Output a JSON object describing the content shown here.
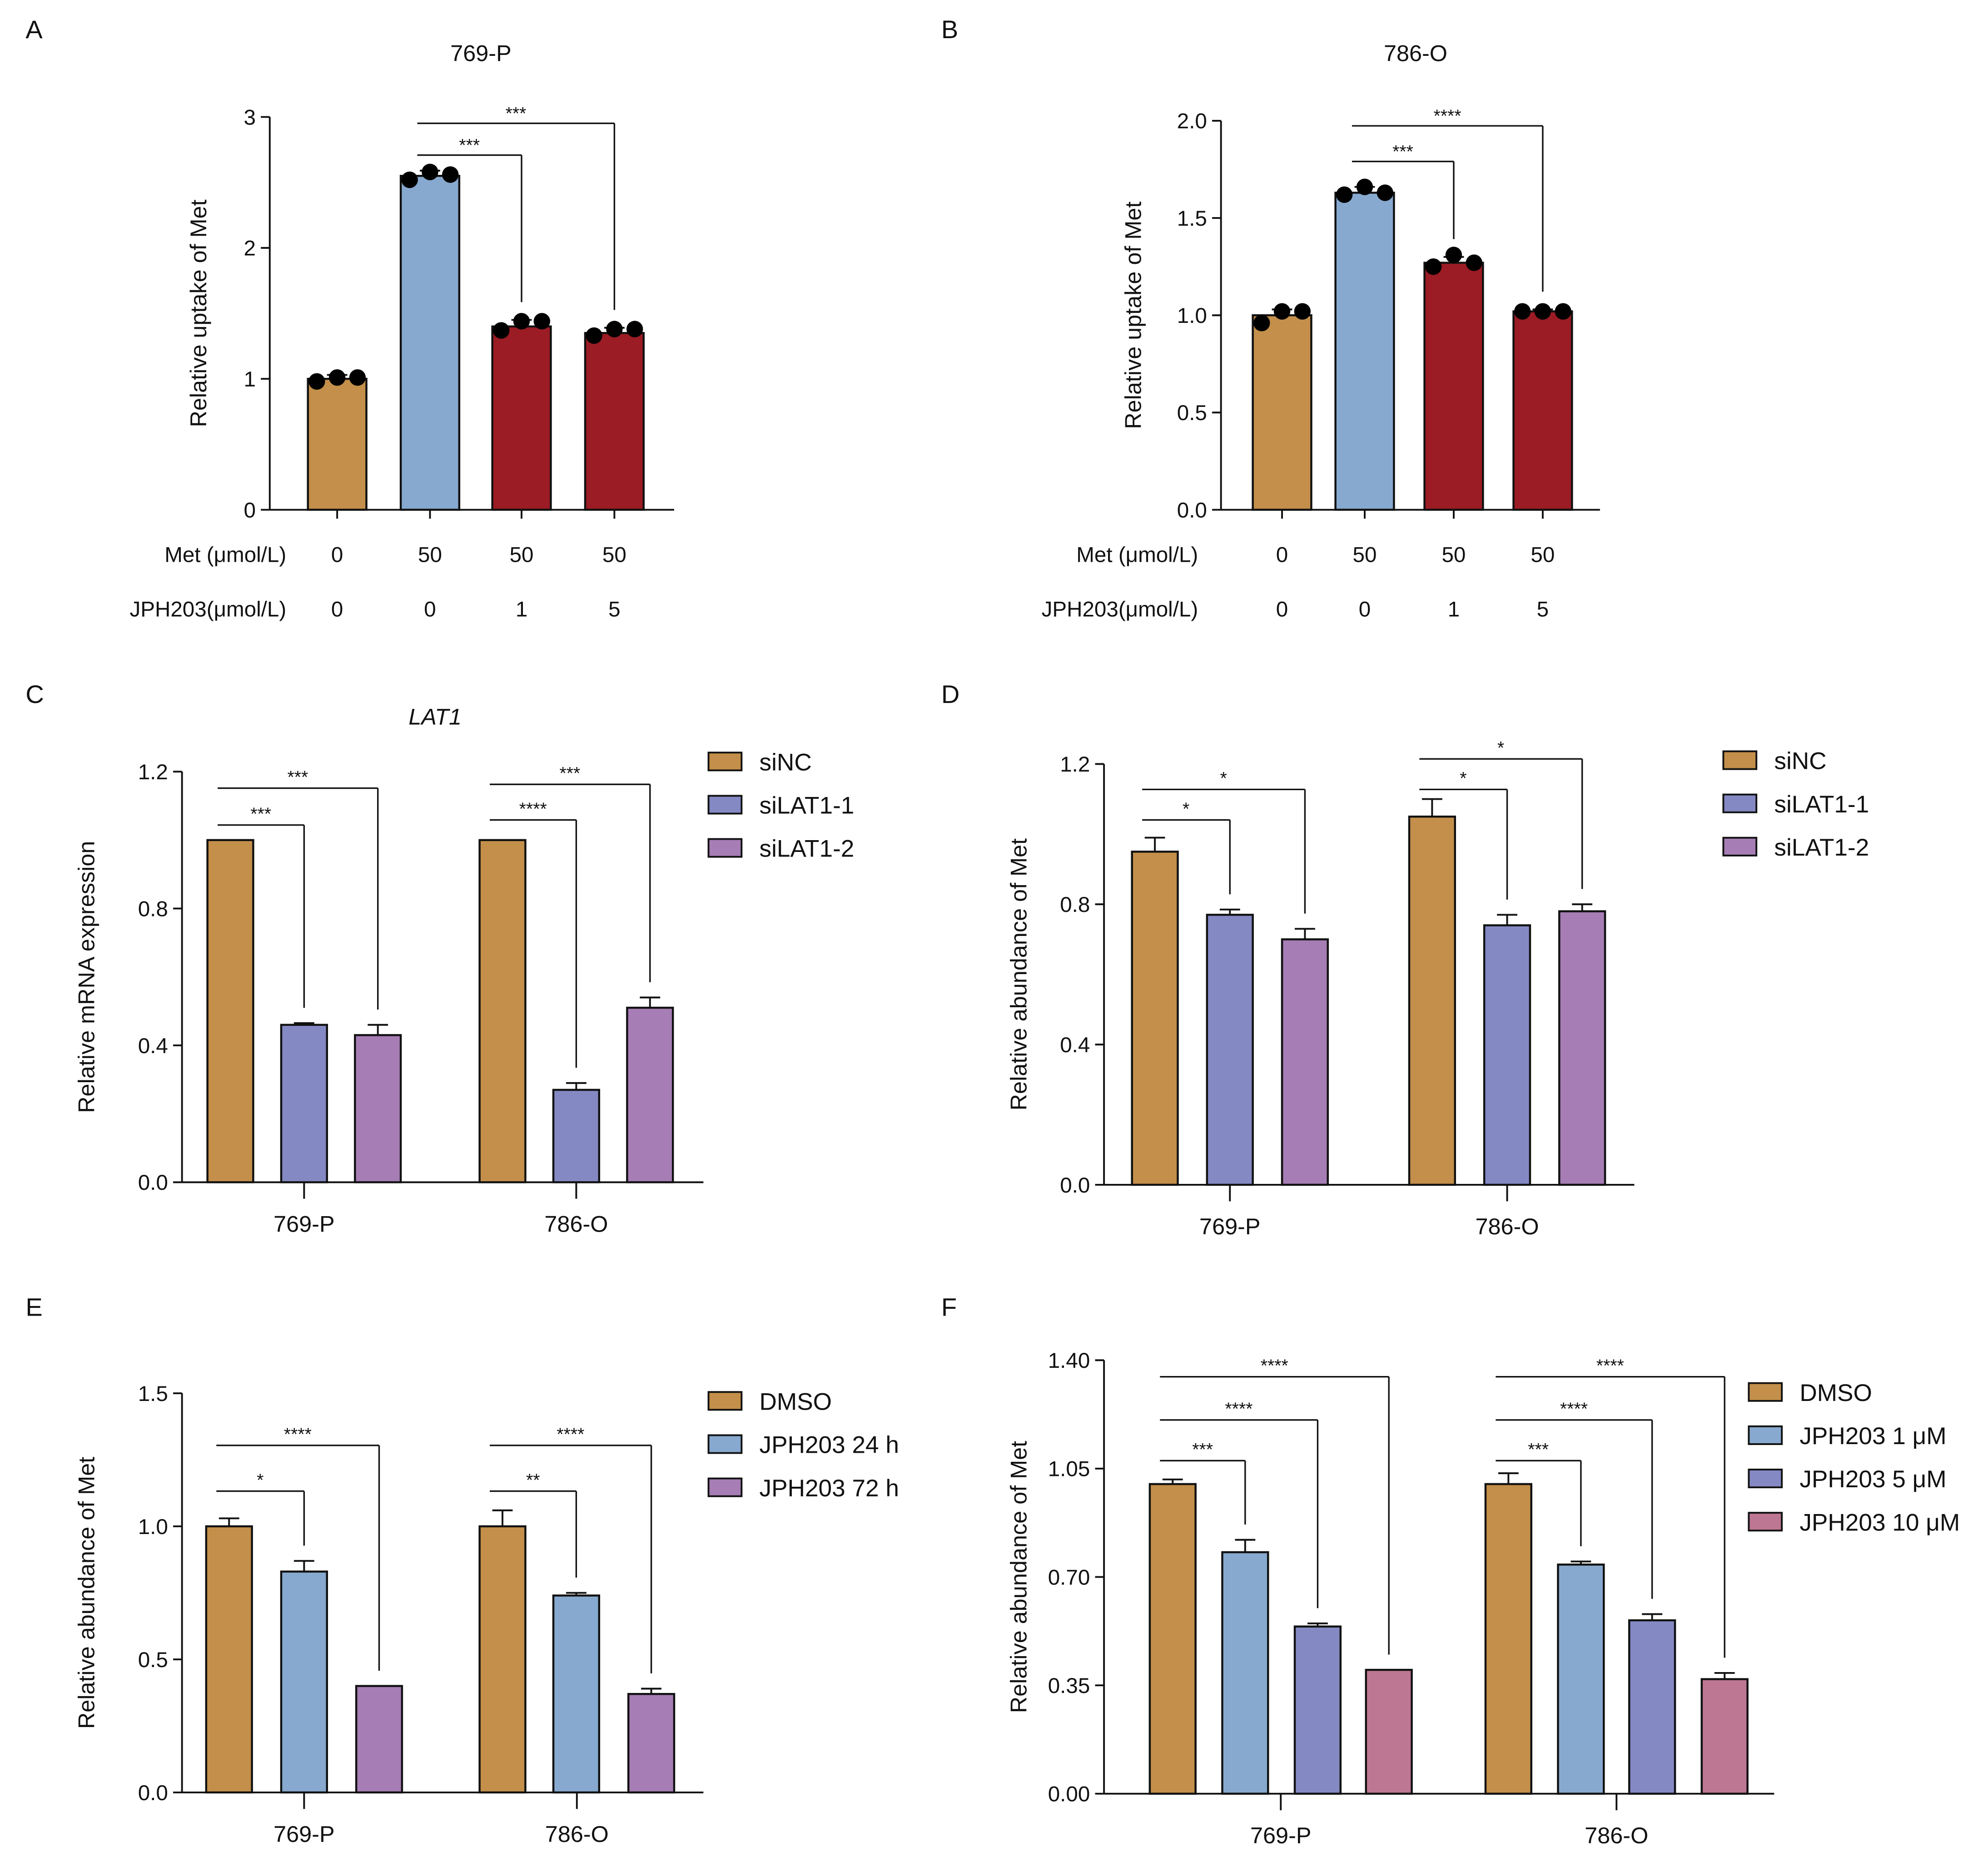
{
  "colors": {
    "gold": "#C38F4A",
    "blue": "#87A9CF",
    "red": "#9B1C24",
    "periwinkle": "#8489C4",
    "purple": "#A67DB5",
    "pink": "#BD7793"
  },
  "chart_data": [
    {
      "panel": "A",
      "type": "bar",
      "title": "769-P",
      "ylabel": "Relative uptake of Met",
      "ylim": [
        0,
        3
      ],
      "yticks": [
        "0",
        "1",
        "2",
        "3"
      ],
      "ytick_values": [
        0,
        1,
        2,
        3
      ],
      "row_labels": [
        "Met (μmol/L)",
        "JPH203(μmol/L)"
      ],
      "rows": [
        [
          "0",
          "50",
          "50",
          "50"
        ],
        [
          "0",
          "0",
          "1",
          "5"
        ]
      ],
      "values": [
        1.0,
        2.55,
        1.4,
        1.35
      ],
      "errors": [
        0.03,
        0.04,
        0.05,
        0.04
      ],
      "points": [
        [
          0.98,
          1.01,
          1.01
        ],
        [
          2.52,
          2.58,
          2.56
        ],
        [
          1.37,
          1.44,
          1.44
        ],
        [
          1.33,
          1.38,
          1.38
        ]
      ],
      "bar_colors": [
        "gold",
        "blue",
        "red",
        "red"
      ],
      "significance": [
        {
          "from": 1,
          "to": 2,
          "label": "***"
        },
        {
          "from": 1,
          "to": 3,
          "label": "***"
        }
      ]
    },
    {
      "panel": "B",
      "type": "bar",
      "title": "786-O",
      "ylabel": "Relative uptake of Met",
      "ylim": [
        0,
        2
      ],
      "yticks": [
        "0.0",
        "0.5",
        "1.0",
        "1.5",
        "2.0"
      ],
      "ytick_values": [
        0,
        0.5,
        1,
        1.5,
        2
      ],
      "row_labels": [
        "Met (μmol/L)",
        "JPH203(μmol/L)"
      ],
      "rows": [
        [
          "0",
          "50",
          "50",
          "50"
        ],
        [
          "0",
          "0",
          "1",
          "5"
        ]
      ],
      "values": [
        1.0,
        1.63,
        1.27,
        1.02
      ],
      "errors": [
        0.03,
        0.03,
        0.03,
        0.01
      ],
      "points": [
        [
          0.96,
          1.02,
          1.02
        ],
        [
          1.62,
          1.66,
          1.63
        ],
        [
          1.25,
          1.31,
          1.27
        ],
        [
          1.02,
          1.02,
          1.02
        ]
      ],
      "bar_colors": [
        "gold",
        "blue",
        "red",
        "red"
      ],
      "significance": [
        {
          "from": 1,
          "to": 2,
          "label": "***"
        },
        {
          "from": 1,
          "to": 3,
          "label": "****"
        }
      ]
    },
    {
      "panel": "C",
      "type": "bar",
      "title": "LAT1",
      "ylabel": "Relative mRNA expression",
      "ylim": [
        0,
        1.2
      ],
      "yticks": [
        "0.0",
        "0.4",
        "0.8",
        "1.2"
      ],
      "ytick_values": [
        0,
        0.4,
        0.8,
        1.2
      ],
      "categories": [
        "769-P",
        "786-O"
      ],
      "series": [
        {
          "name": "siNC",
          "color": "gold",
          "values": [
            1.0,
            1.0
          ],
          "errors": [
            0,
            0
          ]
        },
        {
          "name": "siLAT1-1",
          "color": "periwinkle",
          "values": [
            0.46,
            0.27
          ],
          "errors": [
            0.005,
            0.02
          ]
        },
        {
          "name": "siLAT1-2",
          "color": "purple",
          "values": [
            0.43,
            0.51
          ],
          "errors": [
            0.03,
            0.03
          ]
        }
      ],
      "significance": [
        [
          {
            "to": 1,
            "label": "***"
          },
          {
            "to": 2,
            "label": "***"
          }
        ],
        [
          {
            "to": 1,
            "label": "****"
          },
          {
            "to": 2,
            "label": "***"
          }
        ]
      ]
    },
    {
      "panel": "D",
      "type": "bar",
      "title": "",
      "ylabel": "Relative abundance of Met",
      "ylim": [
        0,
        1.2
      ],
      "yticks": [
        "0.0",
        "0.4",
        "0.8",
        "1.2"
      ],
      "ytick_values": [
        0,
        0.4,
        0.8,
        1.2
      ],
      "categories": [
        "769-P",
        "786-O"
      ],
      "series": [
        {
          "name": "siNC",
          "color": "gold",
          "values": [
            0.95,
            1.05
          ],
          "errors": [
            0.04,
            0.05
          ]
        },
        {
          "name": "siLAT1-1",
          "color": "periwinkle",
          "values": [
            0.77,
            0.74
          ],
          "errors": [
            0.015,
            0.03
          ]
        },
        {
          "name": "siLAT1-2",
          "color": "purple",
          "values": [
            0.7,
            0.78
          ],
          "errors": [
            0.03,
            0.02
          ]
        }
      ],
      "significance": [
        [
          {
            "to": 1,
            "label": "*"
          },
          {
            "to": 2,
            "label": "*"
          }
        ],
        [
          {
            "to": 1,
            "label": "*"
          },
          {
            "to": 2,
            "label": "*"
          }
        ]
      ]
    },
    {
      "panel": "E",
      "type": "bar",
      "title": "",
      "ylabel": "Relative abundance of Met",
      "ylim": [
        0,
        1.5
      ],
      "yticks": [
        "0.0",
        "0.5",
        "1.0",
        "1.5"
      ],
      "ytick_values": [
        0,
        0.5,
        1,
        1.5
      ],
      "categories": [
        "769-P",
        "786-O"
      ],
      "series": [
        {
          "name": "DMSO",
          "color": "gold",
          "values": [
            1.0,
            1.0
          ],
          "errors": [
            0.03,
            0.06
          ]
        },
        {
          "name": "JPH203 24 h",
          "color": "blue",
          "values": [
            0.83,
            0.74
          ],
          "errors": [
            0.04,
            0.01
          ]
        },
        {
          "name": "JPH203 72 h",
          "color": "purple",
          "values": [
            0.4,
            0.37
          ],
          "errors": [
            0,
            0.02
          ]
        }
      ],
      "significance": [
        [
          {
            "to": 1,
            "label": "*"
          },
          {
            "to": 2,
            "label": "****"
          }
        ],
        [
          {
            "to": 1,
            "label": "**"
          },
          {
            "to": 2,
            "label": "****"
          }
        ]
      ]
    },
    {
      "panel": "F",
      "type": "bar",
      "title": "",
      "ylabel": "Relative abundance of Met",
      "ylim": [
        0,
        1.4
      ],
      "yticks": [
        "0.00",
        "0.35",
        "0.70",
        "1.05",
        "1.40"
      ],
      "ytick_values": [
        0,
        0.35,
        0.7,
        1.05,
        1.4
      ],
      "categories": [
        "769-P",
        "786-O"
      ],
      "series": [
        {
          "name": "DMSO",
          "color": "gold",
          "values": [
            1.0,
            1.0
          ],
          "errors": [
            0.015,
            0.035
          ]
        },
        {
          "name": "JPH203  1 μM",
          "color": "blue",
          "values": [
            0.78,
            0.74
          ],
          "errors": [
            0.04,
            0.01
          ]
        },
        {
          "name": "JPH203  5 μM",
          "color": "periwinkle",
          "values": [
            0.54,
            0.56
          ],
          "errors": [
            0.01,
            0.02
          ]
        },
        {
          "name": "JPH203 10 μM",
          "color": "pink",
          "values": [
            0.4,
            0.37
          ],
          "errors": [
            0,
            0.02
          ]
        }
      ],
      "significance": [
        [
          {
            "to": 1,
            "label": "***"
          },
          {
            "to": 2,
            "label": "****"
          },
          {
            "to": 3,
            "label": "****"
          }
        ],
        [
          {
            "to": 1,
            "label": "***"
          },
          {
            "to": 2,
            "label": "****"
          },
          {
            "to": 3,
            "label": "****"
          }
        ]
      ]
    }
  ]
}
